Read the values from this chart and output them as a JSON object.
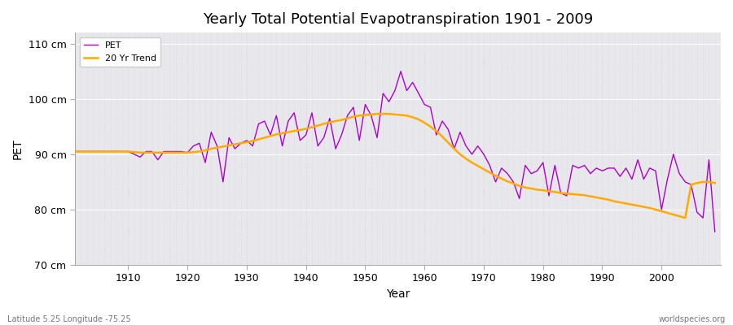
{
  "title": "Yearly Total Potential Evapotranspiration 1901 - 2009",
  "xlabel": "Year",
  "ylabel": "PET",
  "subtitle_left": "Latitude 5.25 Longitude -75.25",
  "subtitle_right": "worldspecies.org",
  "outer_bg_color": "#ffffff",
  "plot_bg_color": "#e8e8ec",
  "pet_color": "#aa00cc",
  "trend_color": "#ffaa00",
  "ylim": [
    70,
    112
  ],
  "yticks": [
    70,
    80,
    90,
    100,
    110
  ],
  "ytick_labels": [
    "70 cm",
    "80 cm",
    "90 cm",
    "100 cm",
    "110 cm"
  ],
  "xlim": [
    1901,
    2010
  ],
  "years": [
    1901,
    1902,
    1903,
    1904,
    1905,
    1906,
    1907,
    1908,
    1909,
    1910,
    1911,
    1912,
    1913,
    1914,
    1915,
    1916,
    1917,
    1918,
    1919,
    1920,
    1921,
    1922,
    1923,
    1924,
    1925,
    1926,
    1927,
    1928,
    1929,
    1930,
    1931,
    1932,
    1933,
    1934,
    1935,
    1936,
    1937,
    1938,
    1939,
    1940,
    1941,
    1942,
    1943,
    1944,
    1945,
    1946,
    1947,
    1948,
    1949,
    1950,
    1951,
    1952,
    1953,
    1954,
    1955,
    1956,
    1957,
    1958,
    1959,
    1960,
    1961,
    1962,
    1963,
    1964,
    1965,
    1966,
    1967,
    1968,
    1969,
    1970,
    1971,
    1972,
    1973,
    1974,
    1975,
    1976,
    1977,
    1978,
    1979,
    1980,
    1981,
    1982,
    1983,
    1984,
    1985,
    1986,
    1987,
    1988,
    1989,
    1990,
    1991,
    1992,
    1993,
    1994,
    1995,
    1996,
    1997,
    1998,
    1999,
    2000,
    2001,
    2002,
    2003,
    2004,
    2005,
    2006,
    2007,
    2008,
    2009
  ],
  "pet_values": [
    90.5,
    90.5,
    90.5,
    90.5,
    90.5,
    90.5,
    90.5,
    90.5,
    90.5,
    90.5,
    90.0,
    89.5,
    90.5,
    90.5,
    89.0,
    90.5,
    90.5,
    90.5,
    90.5,
    90.3,
    91.5,
    92.0,
    88.5,
    94.0,
    91.5,
    85.0,
    93.0,
    91.0,
    92.0,
    92.5,
    91.5,
    95.5,
    96.0,
    93.5,
    97.0,
    91.5,
    96.0,
    97.5,
    92.5,
    93.5,
    97.5,
    91.5,
    93.0,
    96.5,
    91.0,
    93.5,
    97.0,
    98.5,
    92.5,
    99.0,
    97.0,
    93.0,
    101.0,
    99.5,
    101.5,
    105.0,
    101.5,
    103.0,
    101.0,
    99.0,
    98.5,
    93.5,
    96.0,
    94.5,
    91.0,
    94.0,
    91.5,
    90.0,
    91.5,
    90.0,
    88.0,
    85.0,
    87.5,
    86.5,
    85.0,
    82.0,
    88.0,
    86.5,
    87.0,
    88.5,
    82.5,
    88.0,
    83.0,
    82.5,
    88.0,
    87.5,
    88.0,
    86.5,
    87.5,
    87.0,
    87.5,
    87.5,
    86.0,
    87.5,
    85.5,
    89.0,
    85.5,
    87.5,
    87.0,
    80.0,
    85.5,
    90.0,
    86.5,
    85.0,
    84.5,
    79.5,
    78.5,
    89.0,
    76.0
  ],
  "trend_values": [
    90.5,
    90.5,
    90.5,
    90.5,
    90.5,
    90.5,
    90.5,
    90.5,
    90.5,
    90.5,
    90.4,
    90.3,
    90.3,
    90.3,
    90.3,
    90.3,
    90.3,
    90.3,
    90.3,
    90.3,
    90.4,
    90.5,
    90.7,
    91.0,
    91.2,
    91.4,
    91.6,
    91.8,
    92.0,
    92.2,
    92.4,
    92.7,
    93.0,
    93.3,
    93.6,
    93.8,
    94.0,
    94.2,
    94.4,
    94.6,
    94.9,
    95.2,
    95.5,
    95.8,
    96.0,
    96.2,
    96.5,
    96.8,
    97.0,
    97.1,
    97.2,
    97.3,
    97.3,
    97.3,
    97.2,
    97.1,
    97.0,
    96.7,
    96.3,
    95.7,
    95.0,
    94.2,
    93.2,
    92.1,
    91.0,
    90.0,
    89.2,
    88.5,
    87.9,
    87.3,
    86.7,
    86.1,
    85.6,
    85.1,
    84.7,
    84.3,
    84.0,
    83.8,
    83.6,
    83.5,
    83.3,
    83.2,
    83.0,
    82.9,
    82.8,
    82.7,
    82.6,
    82.4,
    82.2,
    82.0,
    81.8,
    81.5,
    81.3,
    81.1,
    80.9,
    80.7,
    80.5,
    80.3,
    80.0,
    79.7,
    79.4,
    79.1,
    78.8,
    78.5,
    84.5,
    84.8,
    85.0,
    85.0,
    84.8
  ]
}
